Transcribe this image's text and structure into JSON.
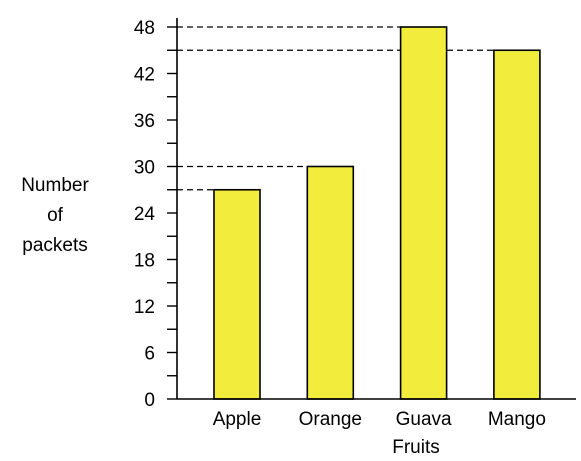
{
  "chart_data": {
    "type": "bar",
    "title": "",
    "xlabel": "Fruits",
    "ylabel": [
      "Number",
      "of",
      "packets"
    ],
    "categories": [
      "Apple",
      "Orange",
      "Guava",
      "Mango"
    ],
    "values": [
      27,
      30,
      48,
      45
    ],
    "ylim": [
      0,
      48
    ],
    "yticks": [
      0,
      6,
      12,
      18,
      24,
      30,
      36,
      42,
      48
    ],
    "minor_tick_step": 3,
    "dashed_guides_for": [
      27,
      30,
      48,
      45
    ],
    "grid": false,
    "colors": {
      "bar_fill": "#f2ec3c",
      "bar_stroke": "#000000",
      "guide": "#000000"
    }
  }
}
